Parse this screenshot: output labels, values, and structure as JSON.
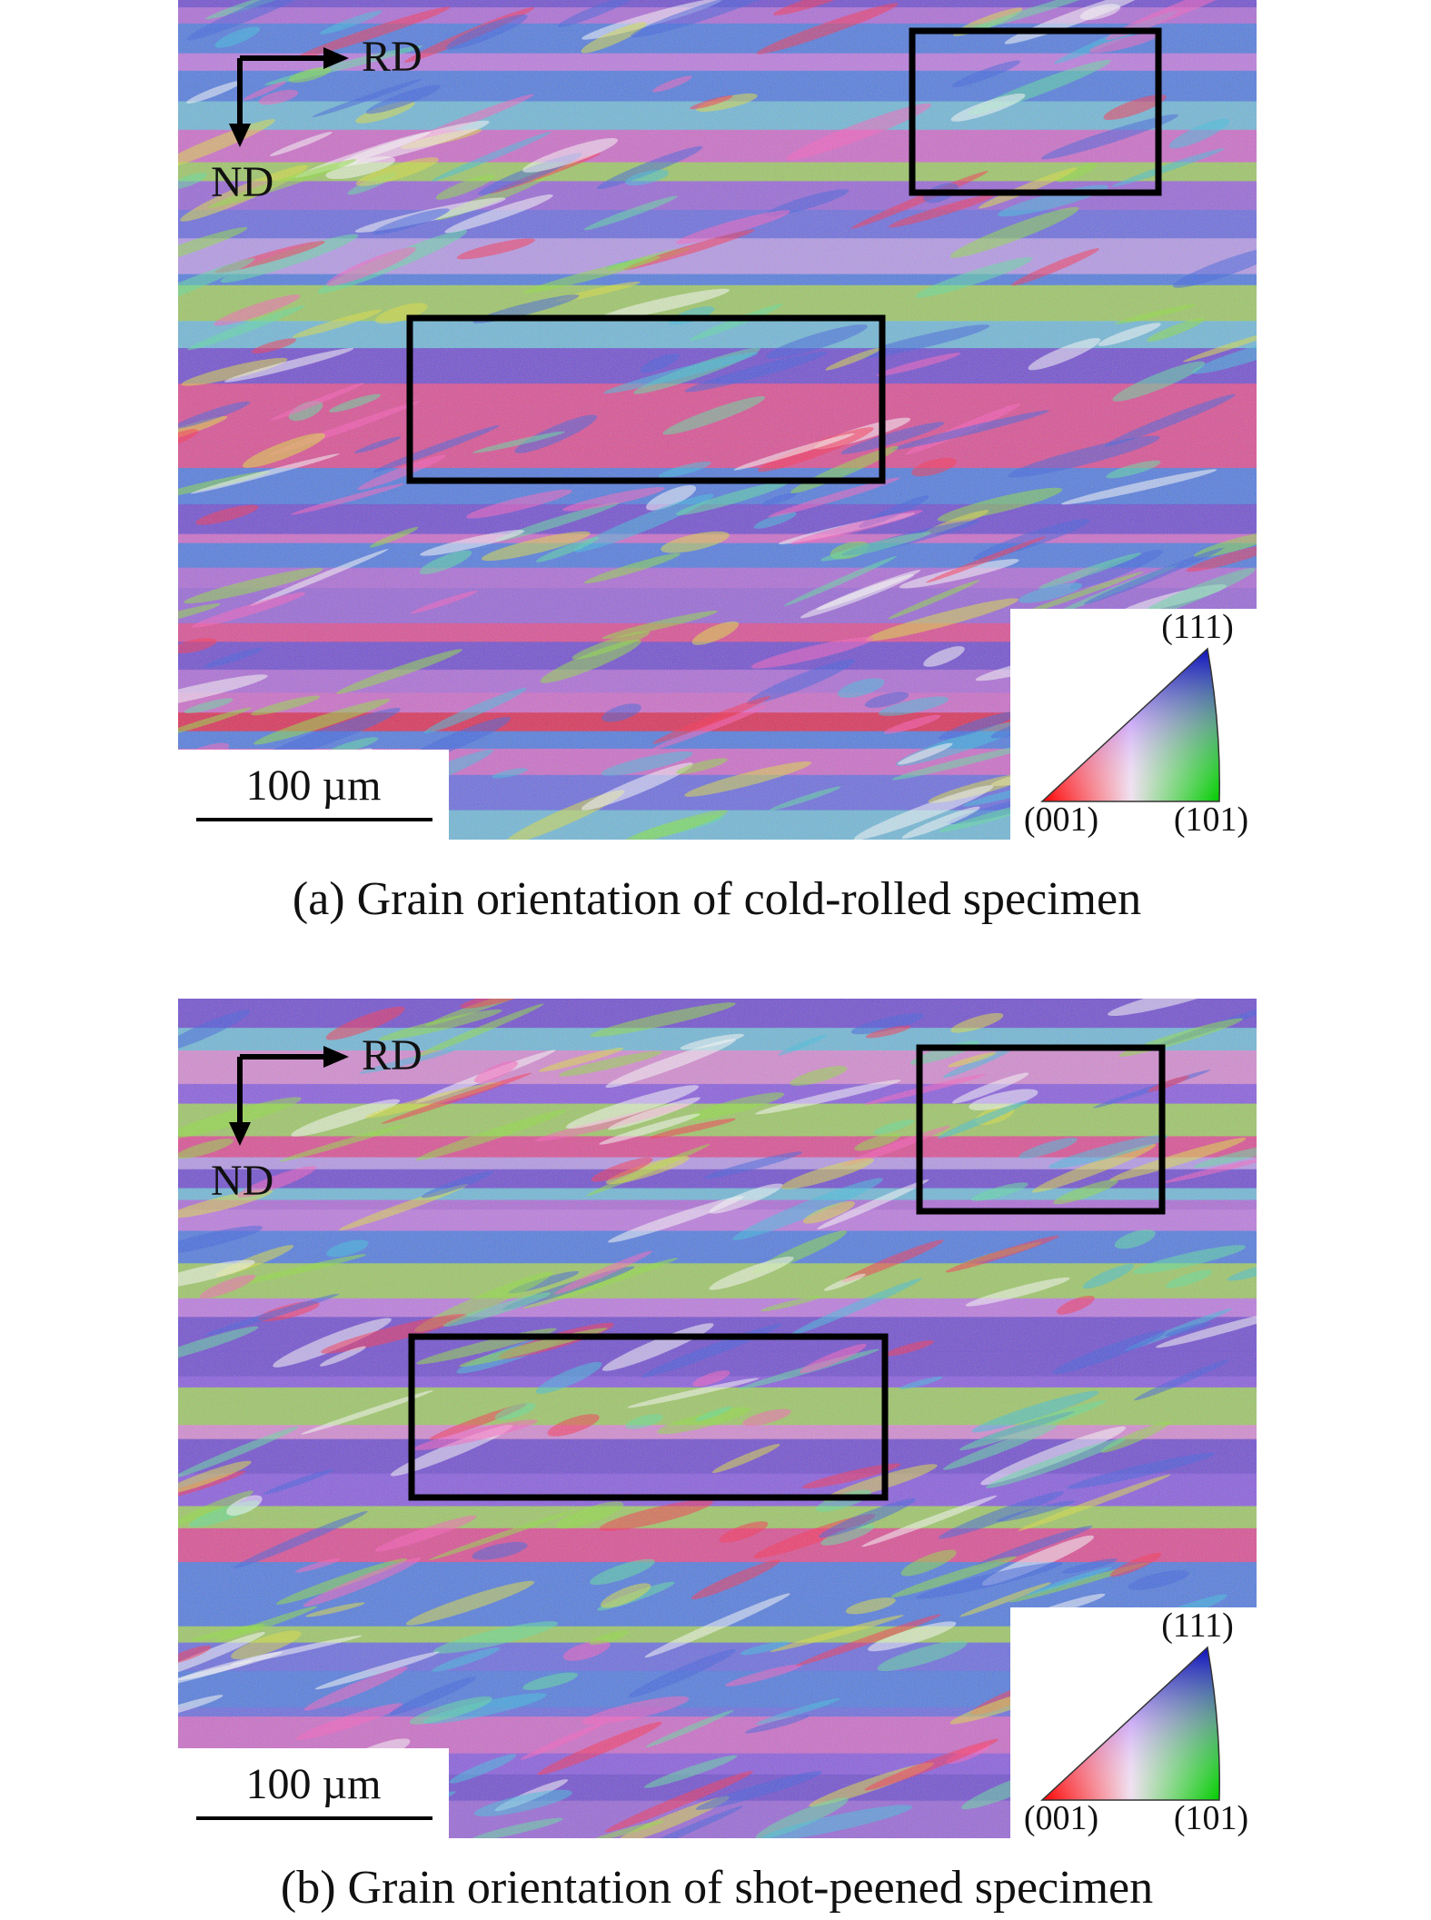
{
  "panels": [
    {
      "direction_labels": {
        "rd": "RD",
        "nd": "ND"
      },
      "scale_bar": "100 µm",
      "legend": {
        "top": "(111)",
        "left": "(001)",
        "right": "(101)"
      },
      "caption": "(a) Grain orientation of cold-rolled specimen"
    },
    {
      "direction_labels": {
        "rd": "RD",
        "nd": "ND"
      },
      "scale_bar": "100 µm",
      "legend": {
        "top": "(111)",
        "left": "(001)",
        "right": "(101)"
      },
      "caption": "(b) Grain orientation of shot-peened specimen"
    }
  ]
}
